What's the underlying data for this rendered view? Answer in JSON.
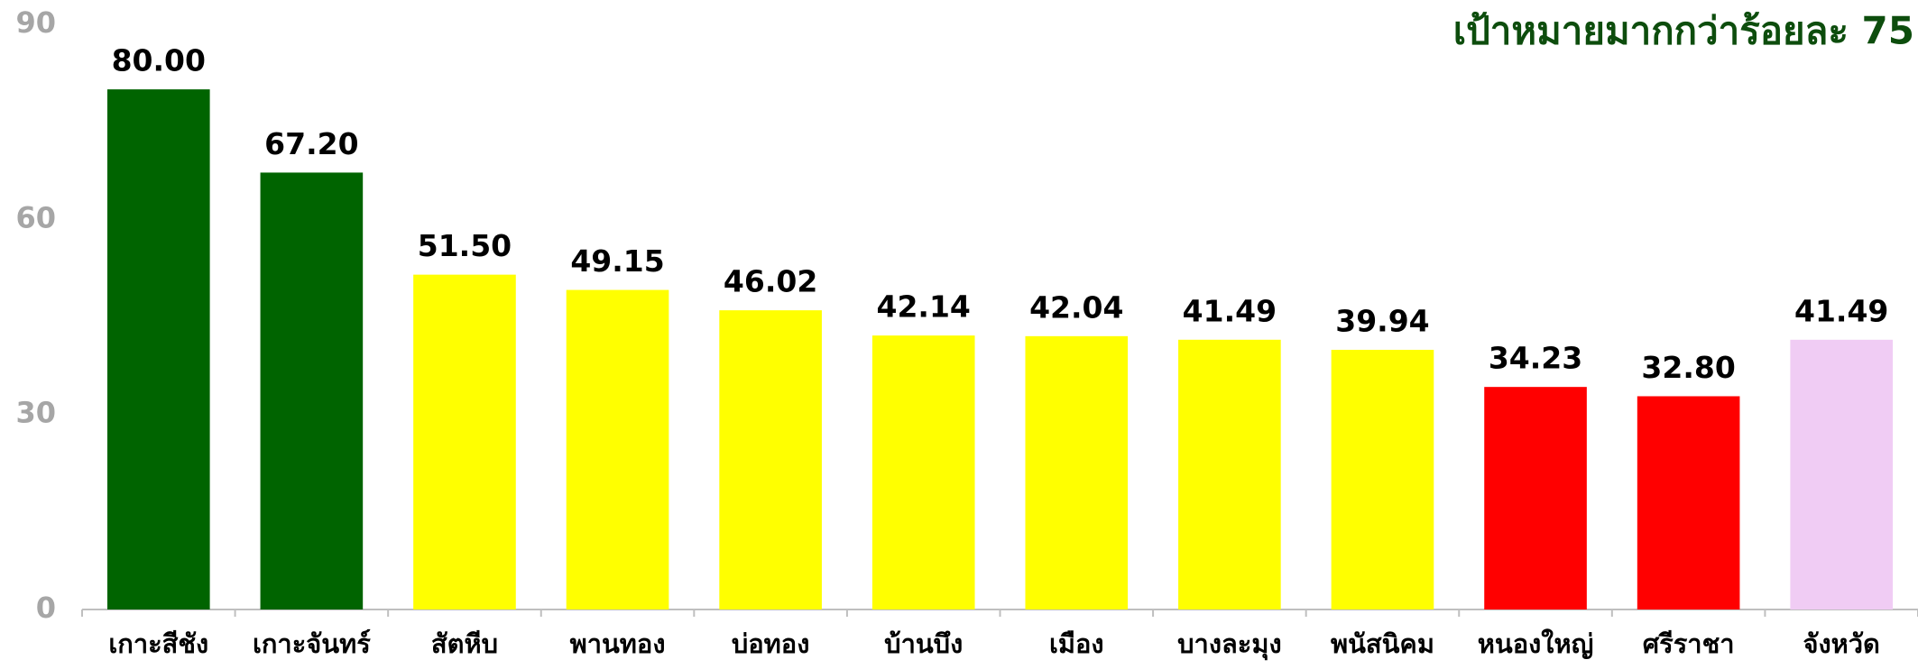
{
  "chart_data": {
    "type": "bar",
    "title": "เป้าหมายมากกว่าร้อยละ 75",
    "categories": [
      "เกาะสีชัง",
      "เกาะจันทร์",
      "สัตหีบ",
      "พานทอง",
      "บ่อทอง",
      "บ้านบึง",
      "เมือง",
      "บางละมุง",
      "พนัสนิคม",
      "หนองใหญ่",
      "ศรีราชา",
      "จังหวัด"
    ],
    "values": [
      80,
      67.2,
      51.5,
      49.15,
      46.02,
      42.14,
      42.04,
      41.49,
      39.94,
      34.23,
      32.8,
      41.49
    ],
    "value_labels": [
      "80.00",
      "67.20",
      "51.50",
      "49.15",
      "46.02",
      "42.14",
      "42.04",
      "41.49",
      "39.94",
      "34.23",
      "32.80",
      "41.49"
    ],
    "colors": [
      "#006400",
      "#006400",
      "#ffff00",
      "#ffff00",
      "#ffff00",
      "#ffff00",
      "#ffff00",
      "#ffff00",
      "#ffff00",
      "#ff0000",
      "#ff0000",
      "#f0ccf4"
    ],
    "ylim": [
      0,
      90
    ],
    "yticks": [
      0,
      30,
      60,
      90
    ],
    "grid": false
  }
}
